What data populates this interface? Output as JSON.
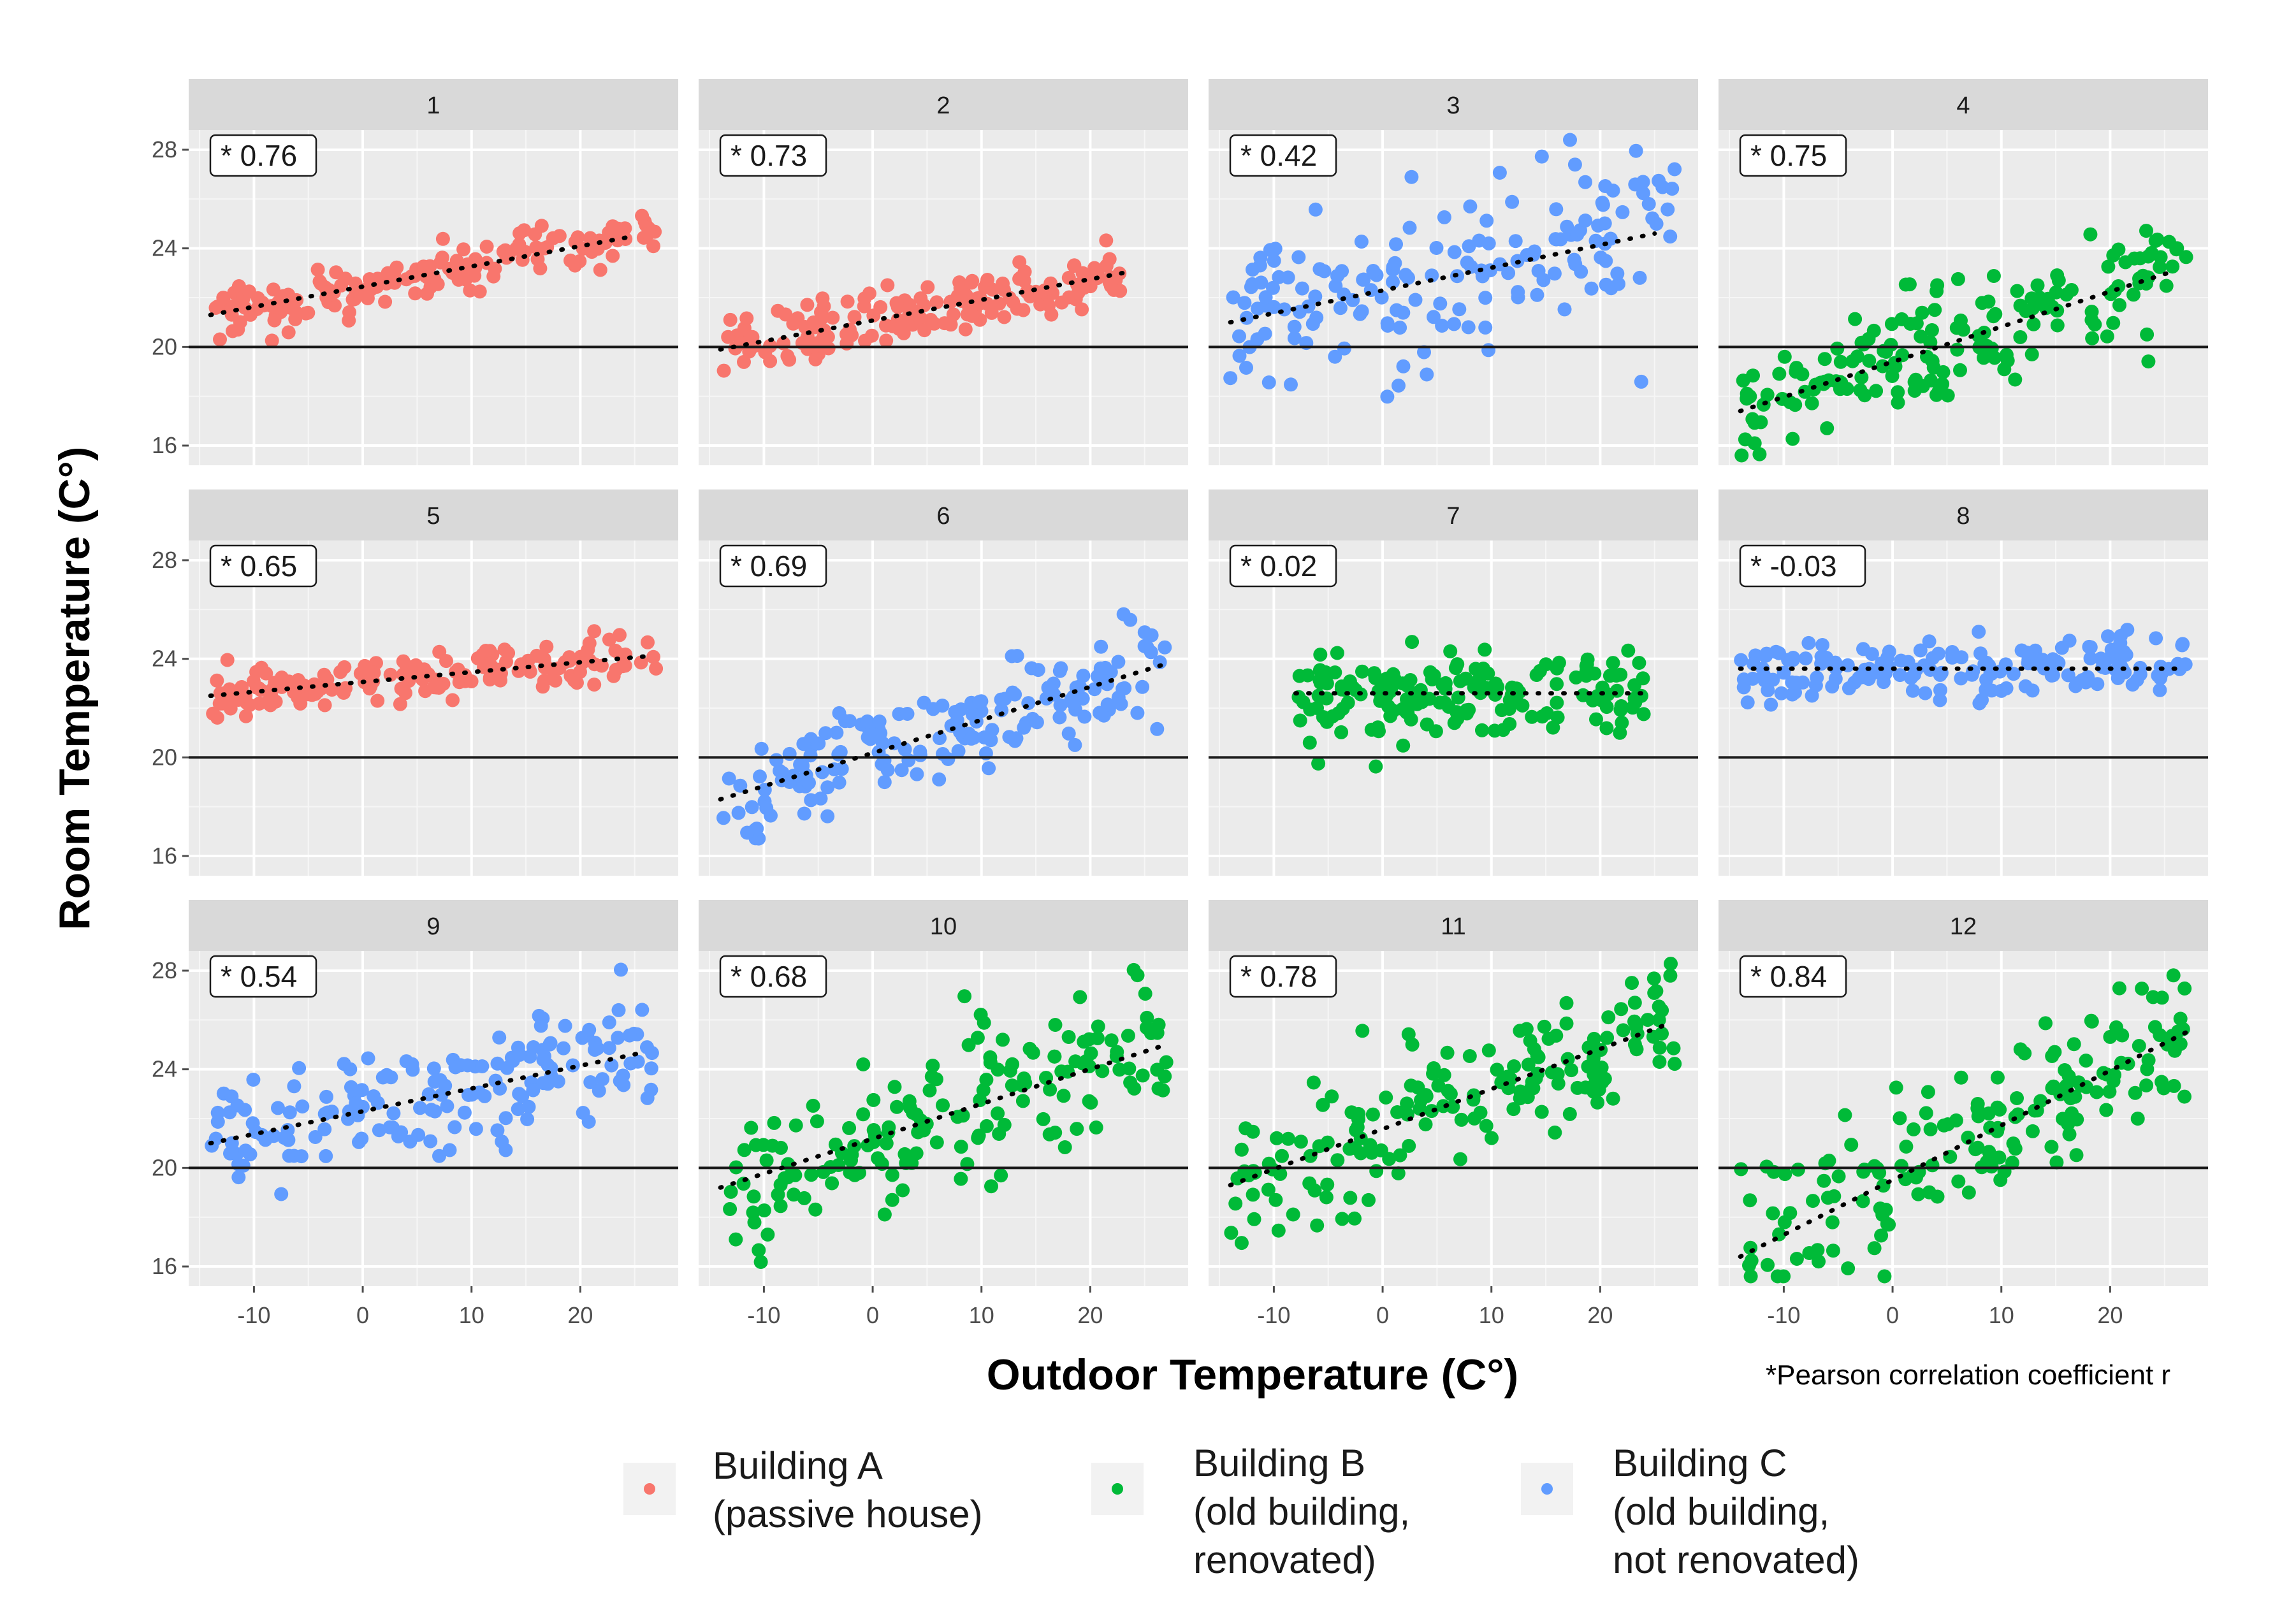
{
  "chart_data": {
    "type": "scatter",
    "xlabel": "Outdoor Temperature (C°)",
    "ylabel": "Room Temperature (C°)",
    "footnote": "*Pearson correlation coefficient r",
    "xlim": [
      -16,
      29
    ],
    "ylim": [
      15.2,
      28.8
    ],
    "x_ticks": [
      -10,
      0,
      10,
      20
    ],
    "y_ticks": [
      16,
      20,
      24,
      28
    ],
    "reference_line_y": 20,
    "series": [
      {
        "name": "Building A",
        "label_line1": "Building A",
        "label_line2": "(passive house)",
        "label_line3": "",
        "color": "#F8766D"
      },
      {
        "name": "Building B",
        "label_line1": "Building B",
        "label_line2": "(old building,",
        "label_line3": "renovated)",
        "color": "#00BA38"
      },
      {
        "name": "Building C",
        "label_line1": "Building C",
        "label_line2": "(old building,",
        "label_line3": "not renovated)",
        "color": "#619CFF"
      }
    ],
    "panels": [
      {
        "id": "1",
        "series": "Building A",
        "r": "* 0.76",
        "x_range": [
          -14,
          27
        ],
        "trend": [
          [
            -14,
            21.3
          ],
          [
            25,
            24.5
          ]
        ],
        "spread": 0.5
      },
      {
        "id": "2",
        "series": "Building A",
        "r": "* 0.73",
        "x_range": [
          -14,
          24
        ],
        "trend": [
          [
            -14,
            19.9
          ],
          [
            23,
            23.0
          ]
        ],
        "spread": 0.6
      },
      {
        "id": "3",
        "series": "Building C",
        "r": "* 0.42",
        "x_range": [
          -14,
          27
        ],
        "trend": [
          [
            -14,
            21.0
          ],
          [
            25,
            24.6
          ]
        ],
        "spread": 1.9
      },
      {
        "id": "4",
        "series": "Building B",
        "r": "* 0.75",
        "x_range": [
          -14,
          27
        ],
        "trend": [
          [
            -14,
            17.4
          ],
          [
            26,
            23.1
          ]
        ],
        "spread": 1.2
      },
      {
        "id": "5",
        "series": "Building A",
        "r": "* 0.65",
        "x_range": [
          -14,
          27
        ],
        "trend": [
          [
            -14,
            22.5
          ],
          [
            26,
            24.1
          ]
        ],
        "spread": 0.45
      },
      {
        "id": "6",
        "series": "Building C",
        "r": "* 0.69",
        "x_range": [
          -14,
          27
        ],
        "trend": [
          [
            -14,
            18.3
          ],
          [
            27,
            23.8
          ]
        ],
        "spread": 1.1
      },
      {
        "id": "7",
        "series": "Building B",
        "r": "* 0.02",
        "x_range": [
          -8,
          24
        ],
        "trend": [
          [
            -8,
            22.6
          ],
          [
            24,
            22.6
          ]
        ],
        "spread": 0.9
      },
      {
        "id": "8",
        "series": "Building C",
        "r": "* -0.03",
        "x_range": [
          -14,
          27
        ],
        "trend": [
          [
            -14,
            23.6
          ],
          [
            26,
            23.6
          ]
        ],
        "spread": 0.6
      },
      {
        "id": "9",
        "series": "Building C",
        "r": "* 0.54",
        "x_range": [
          -14,
          27
        ],
        "trend": [
          [
            -14,
            21.0
          ],
          [
            26,
            24.7
          ]
        ],
        "spread": 1.1
      },
      {
        "id": "10",
        "series": "Building B",
        "r": "* 0.68",
        "x_range": [
          -14,
          27
        ],
        "trend": [
          [
            -14,
            19.2
          ],
          [
            27,
            25.0
          ]
        ],
        "spread": 1.5
      },
      {
        "id": "11",
        "series": "Building B",
        "r": "* 0.78",
        "x_range": [
          -14,
          27
        ],
        "trend": [
          [
            -14,
            19.3
          ],
          [
            26,
            25.8
          ]
        ],
        "spread": 1.4
      },
      {
        "id": "12",
        "series": "Building B",
        "r": "* 0.84",
        "x_range": [
          -14,
          27
        ],
        "trend": [
          [
            -14,
            16.4
          ],
          [
            27,
            25.5
          ]
        ],
        "spread": 1.5
      }
    ]
  }
}
